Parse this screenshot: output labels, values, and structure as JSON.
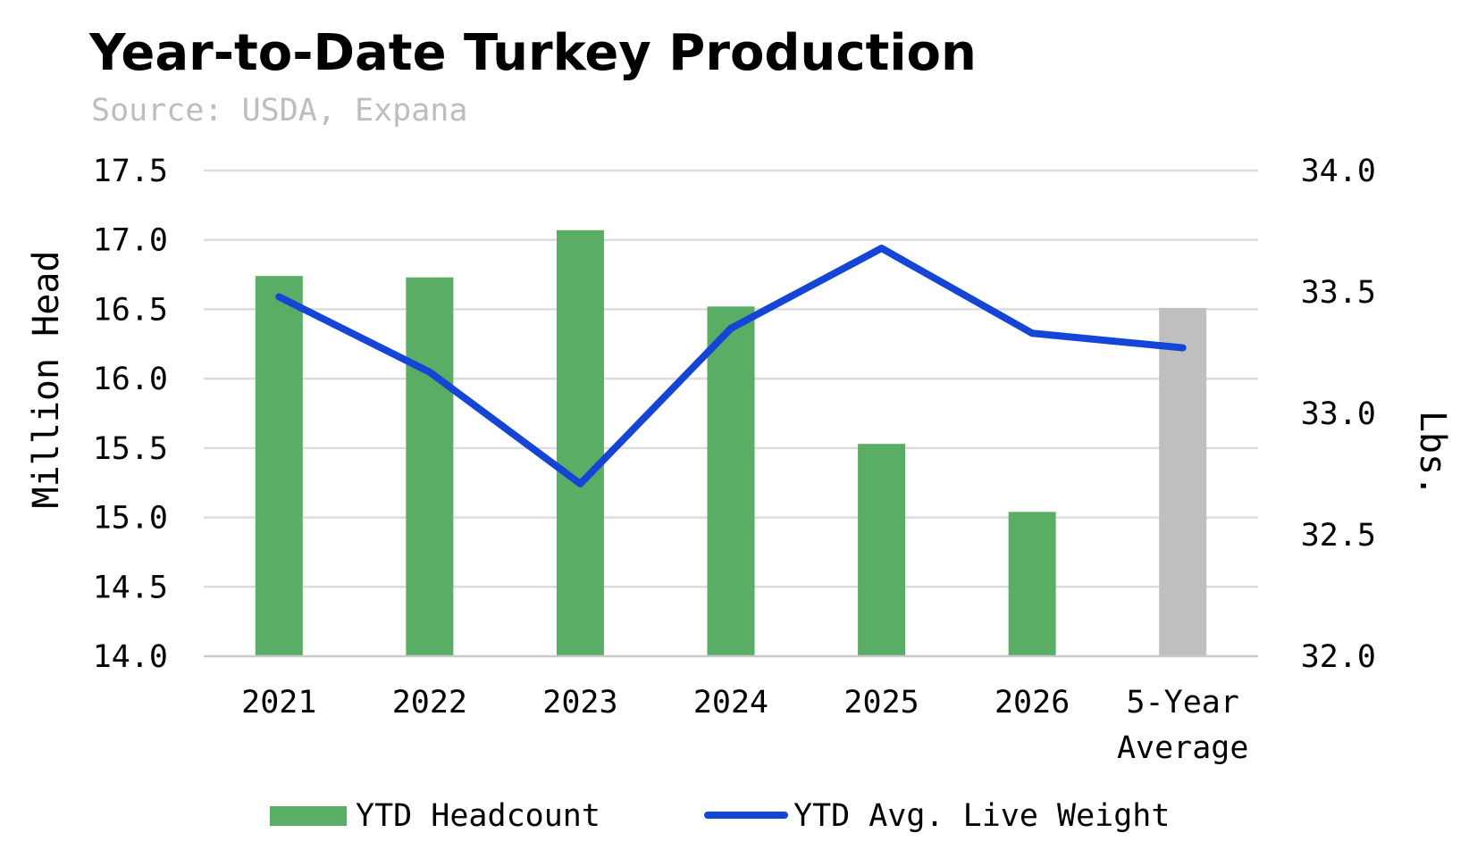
{
  "chart_data": {
    "type": "bar",
    "title": "Year-to-Date Turkey Production",
    "subtitle": "Source: USDA, Expana",
    "categories": [
      "2021",
      "2022",
      "2023",
      "2024",
      "2025",
      "2026",
      "5-Year Average"
    ],
    "series": [
      {
        "name": "YTD Headcount",
        "type": "bar",
        "axis": "left",
        "color": "#59ad64",
        "highlight_color": "#bfbfbf",
        "highlight_index": 6,
        "values": [
          16.74,
          16.73,
          17.07,
          16.52,
          15.53,
          15.04,
          16.51
        ]
      },
      {
        "name": "YTD Avg. Live Weight",
        "type": "line",
        "axis": "right",
        "color": "#1445d6",
        "values": [
          33.48,
          33.17,
          32.71,
          33.35,
          33.68,
          33.33,
          33.27
        ]
      }
    ],
    "ylabel": "Million Head",
    "y2label": "Lbs.",
    "ylim": [
      14.0,
      17.5
    ],
    "y2lim": [
      32.0,
      34.0
    ],
    "yticks": [
      "14.0",
      "14.5",
      "15.0",
      "15.5",
      "16.0",
      "16.5",
      "17.0",
      "17.5"
    ],
    "y2ticks": [
      "32.0",
      "32.5",
      "33.0",
      "33.5",
      "34.0"
    ],
    "grid": true,
    "legend": "bottom"
  }
}
